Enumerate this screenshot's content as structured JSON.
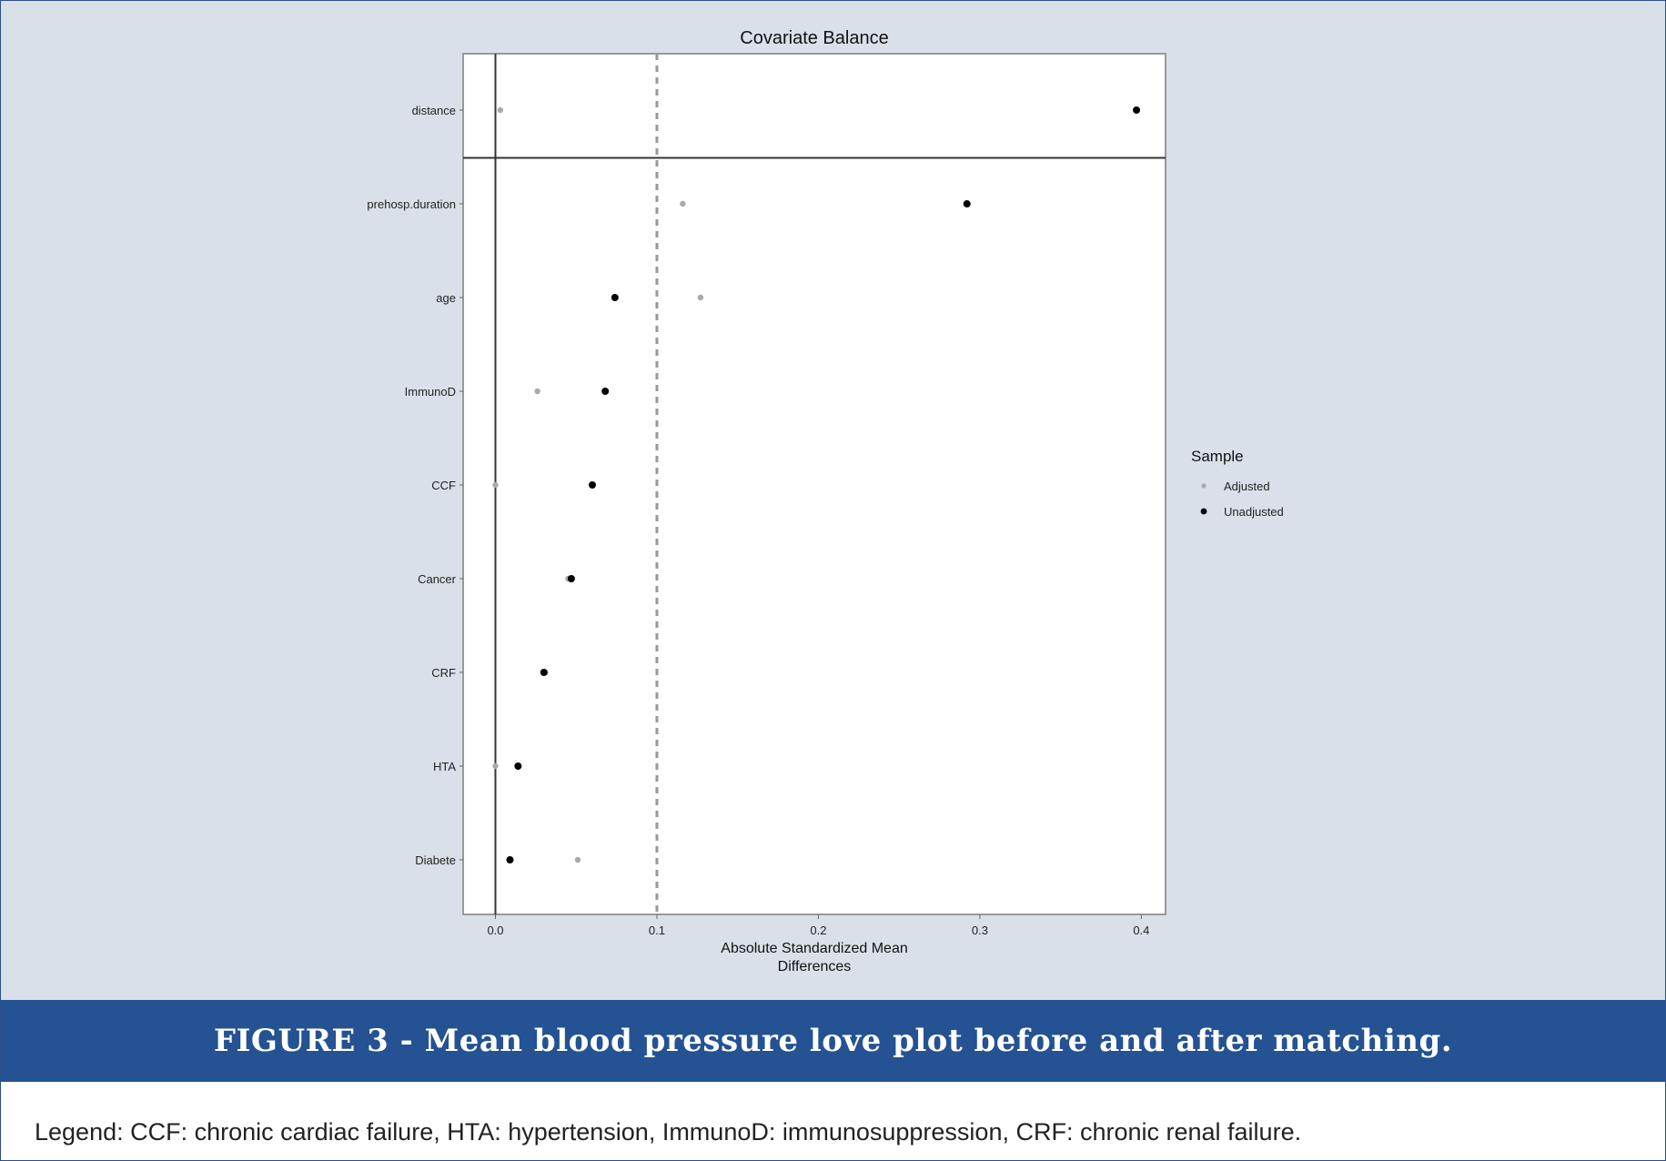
{
  "chart_data": {
    "type": "scatter",
    "title": "Covariate Balance",
    "xlabel_lines": [
      "Absolute Standardized Mean",
      "Differences"
    ],
    "ylabel": "",
    "xlim": [
      -0.02,
      0.415
    ],
    "xticks": [
      0.0,
      0.1,
      0.2,
      0.3,
      0.4
    ],
    "xtick_labels": [
      "0.0",
      "0.1",
      "0.2",
      "0.3",
      "0.4"
    ],
    "threshold": 0.1,
    "categories": [
      "distance",
      "prehosp.duration",
      "age",
      "ImmunoD",
      "CCF",
      "Cancer",
      "CRF",
      "HTA",
      "Diabete"
    ],
    "series": [
      {
        "name": "Adjusted",
        "color": "#aaaaaa",
        "values": [
          0.003,
          0.116,
          0.127,
          0.026,
          0.0,
          0.045,
          0.031,
          0.0,
          0.051
        ]
      },
      {
        "name": "Unadjusted",
        "color": "#000000",
        "values": [
          0.397,
          0.292,
          0.074,
          0.068,
          0.06,
          0.047,
          0.03,
          0.014,
          0.009
        ]
      }
    ],
    "legend_title": "Sample",
    "legend_position": "right",
    "grid": false
  },
  "caption": "FIGURE 3 - Mean blood pressure love plot before and after matching.",
  "legend_note": "Legend: CCF: chronic cardiac failure, HTA: hypertension, ImmunoD: immunosuppression, CRF: chronic renal failure."
}
